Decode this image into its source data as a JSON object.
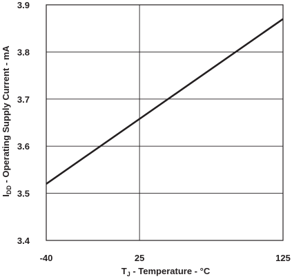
{
  "chart_data": {
    "type": "line",
    "xlabel": {
      "main": "T",
      "sub": "J",
      "rest": " - Temperature - °C"
    },
    "ylabel": {
      "main": "I",
      "sub": "DD",
      "rest": " - Operating Supply Current - mA"
    },
    "xlim": [
      -40,
      125
    ],
    "ylim": [
      3.4,
      3.9
    ],
    "x_ticks": [
      -40,
      25,
      125
    ],
    "x_tick_labels": [
      "-40",
      "25",
      "125"
    ],
    "y_ticks": [
      3.4,
      3.5,
      3.6,
      3.7,
      3.8,
      3.9
    ],
    "y_tick_labels": [
      "3.4",
      "3.5",
      "3.6",
      "3.7",
      "3.8",
      "3.9"
    ],
    "grid": true,
    "series": [
      {
        "x": [
          -40,
          125
        ],
        "y": [
          3.52,
          3.87
        ],
        "color": "#231f20"
      }
    ]
  }
}
